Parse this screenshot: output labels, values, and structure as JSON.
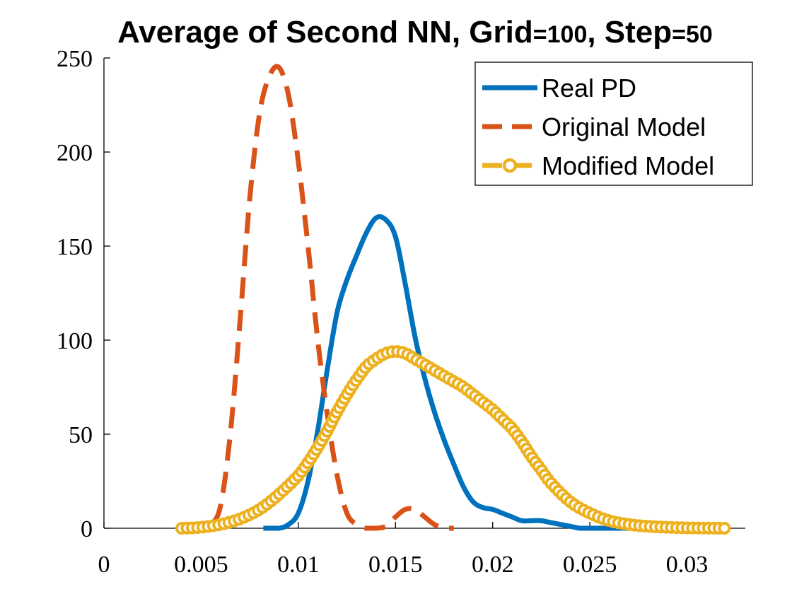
{
  "chart_data": {
    "type": "line",
    "title": "Average of Second NN, Grid=100, Step=50",
    "title_parts": {
      "main1": "Average of Second NN, Grid",
      "eq1": "=100",
      "main2": ", Step",
      "eq2": "=50"
    },
    "xlabel": "",
    "ylabel": "",
    "xlim": [
      0,
      0.033
    ],
    "ylim": [
      0,
      250
    ],
    "xticks": [
      0,
      0.005,
      0.01,
      0.015,
      0.02,
      0.025,
      0.03
    ],
    "xtick_labels": [
      "0",
      "0.005",
      "0.01",
      "0.015",
      "0.02",
      "0.025",
      "0.03"
    ],
    "yticks": [
      0,
      50,
      100,
      150,
      200,
      250
    ],
    "ytick_labels": [
      "0",
      "50",
      "100",
      "150",
      "200",
      "250"
    ],
    "grid": false,
    "legend_position": "top-right",
    "series": [
      {
        "name": "Real PD",
        "color": "#0072BD",
        "style": "solid",
        "x": [
          0.0082,
          0.009,
          0.0095,
          0.01,
          0.0105,
          0.011,
          0.0115,
          0.012,
          0.0125,
          0.013,
          0.0135,
          0.014,
          0.0145,
          0.015,
          0.0155,
          0.016,
          0.0165,
          0.017,
          0.0175,
          0.018,
          0.0185,
          0.019,
          0.0195,
          0.02,
          0.0205,
          0.021,
          0.0215,
          0.022,
          0.0225,
          0.023,
          0.0235,
          0.024,
          0.0245,
          0.025,
          0.0255,
          0.026,
          0.027,
          0.028
        ],
        "y": [
          0,
          0,
          2,
          8,
          25,
          52,
          85,
          115,
          132,
          145,
          157,
          165,
          164,
          155,
          130,
          102,
          80,
          62,
          47,
          34,
          22,
          14,
          11,
          10,
          8,
          6,
          4,
          4,
          4,
          3,
          2,
          1,
          0,
          0,
          0,
          0,
          0,
          0
        ]
      },
      {
        "name": "Original Model",
        "color": "#D95319",
        "style": "dashed",
        "x": [
          0.004,
          0.005,
          0.0055,
          0.006,
          0.0065,
          0.007,
          0.0075,
          0.008,
          0.0085,
          0.009,
          0.0095,
          0.01,
          0.0105,
          0.011,
          0.0115,
          0.012,
          0.0125,
          0.013,
          0.0135,
          0.014,
          0.0145,
          0.015,
          0.0155,
          0.016,
          0.0165,
          0.017,
          0.0175,
          0.018
        ],
        "y": [
          0,
          0,
          2,
          12,
          50,
          110,
          175,
          220,
          240,
          245,
          230,
          195,
          150,
          100,
          60,
          28,
          8,
          2,
          0,
          0,
          1,
          6,
          10,
          10,
          6,
          2,
          0,
          0
        ]
      },
      {
        "name": "Modified Model",
        "color": "#EDB120",
        "style": "dashed-circles",
        "x": [
          0.004,
          0.005,
          0.006,
          0.007,
          0.008,
          0.009,
          0.01,
          0.0105,
          0.011,
          0.0115,
          0.012,
          0.0125,
          0.013,
          0.0135,
          0.014,
          0.0145,
          0.015,
          0.0155,
          0.016,
          0.0165,
          0.017,
          0.0175,
          0.018,
          0.0185,
          0.019,
          0.0195,
          0.02,
          0.0205,
          0.021,
          0.0215,
          0.022,
          0.0225,
          0.023,
          0.024,
          0.025,
          0.026,
          0.027,
          0.028,
          0.029,
          0.03,
          0.031,
          0.032
        ],
        "y": [
          0,
          0.5,
          2,
          5,
          10,
          18,
          28,
          35,
          43,
          52,
          62,
          71,
          79,
          86,
          90,
          93,
          94,
          93,
          90,
          87,
          84,
          81,
          78,
          75,
          71,
          67,
          63,
          58,
          53,
          46,
          38,
          31,
          24,
          14,
          8,
          4,
          2,
          1,
          0.5,
          0.2,
          0.1,
          0
        ]
      }
    ]
  }
}
